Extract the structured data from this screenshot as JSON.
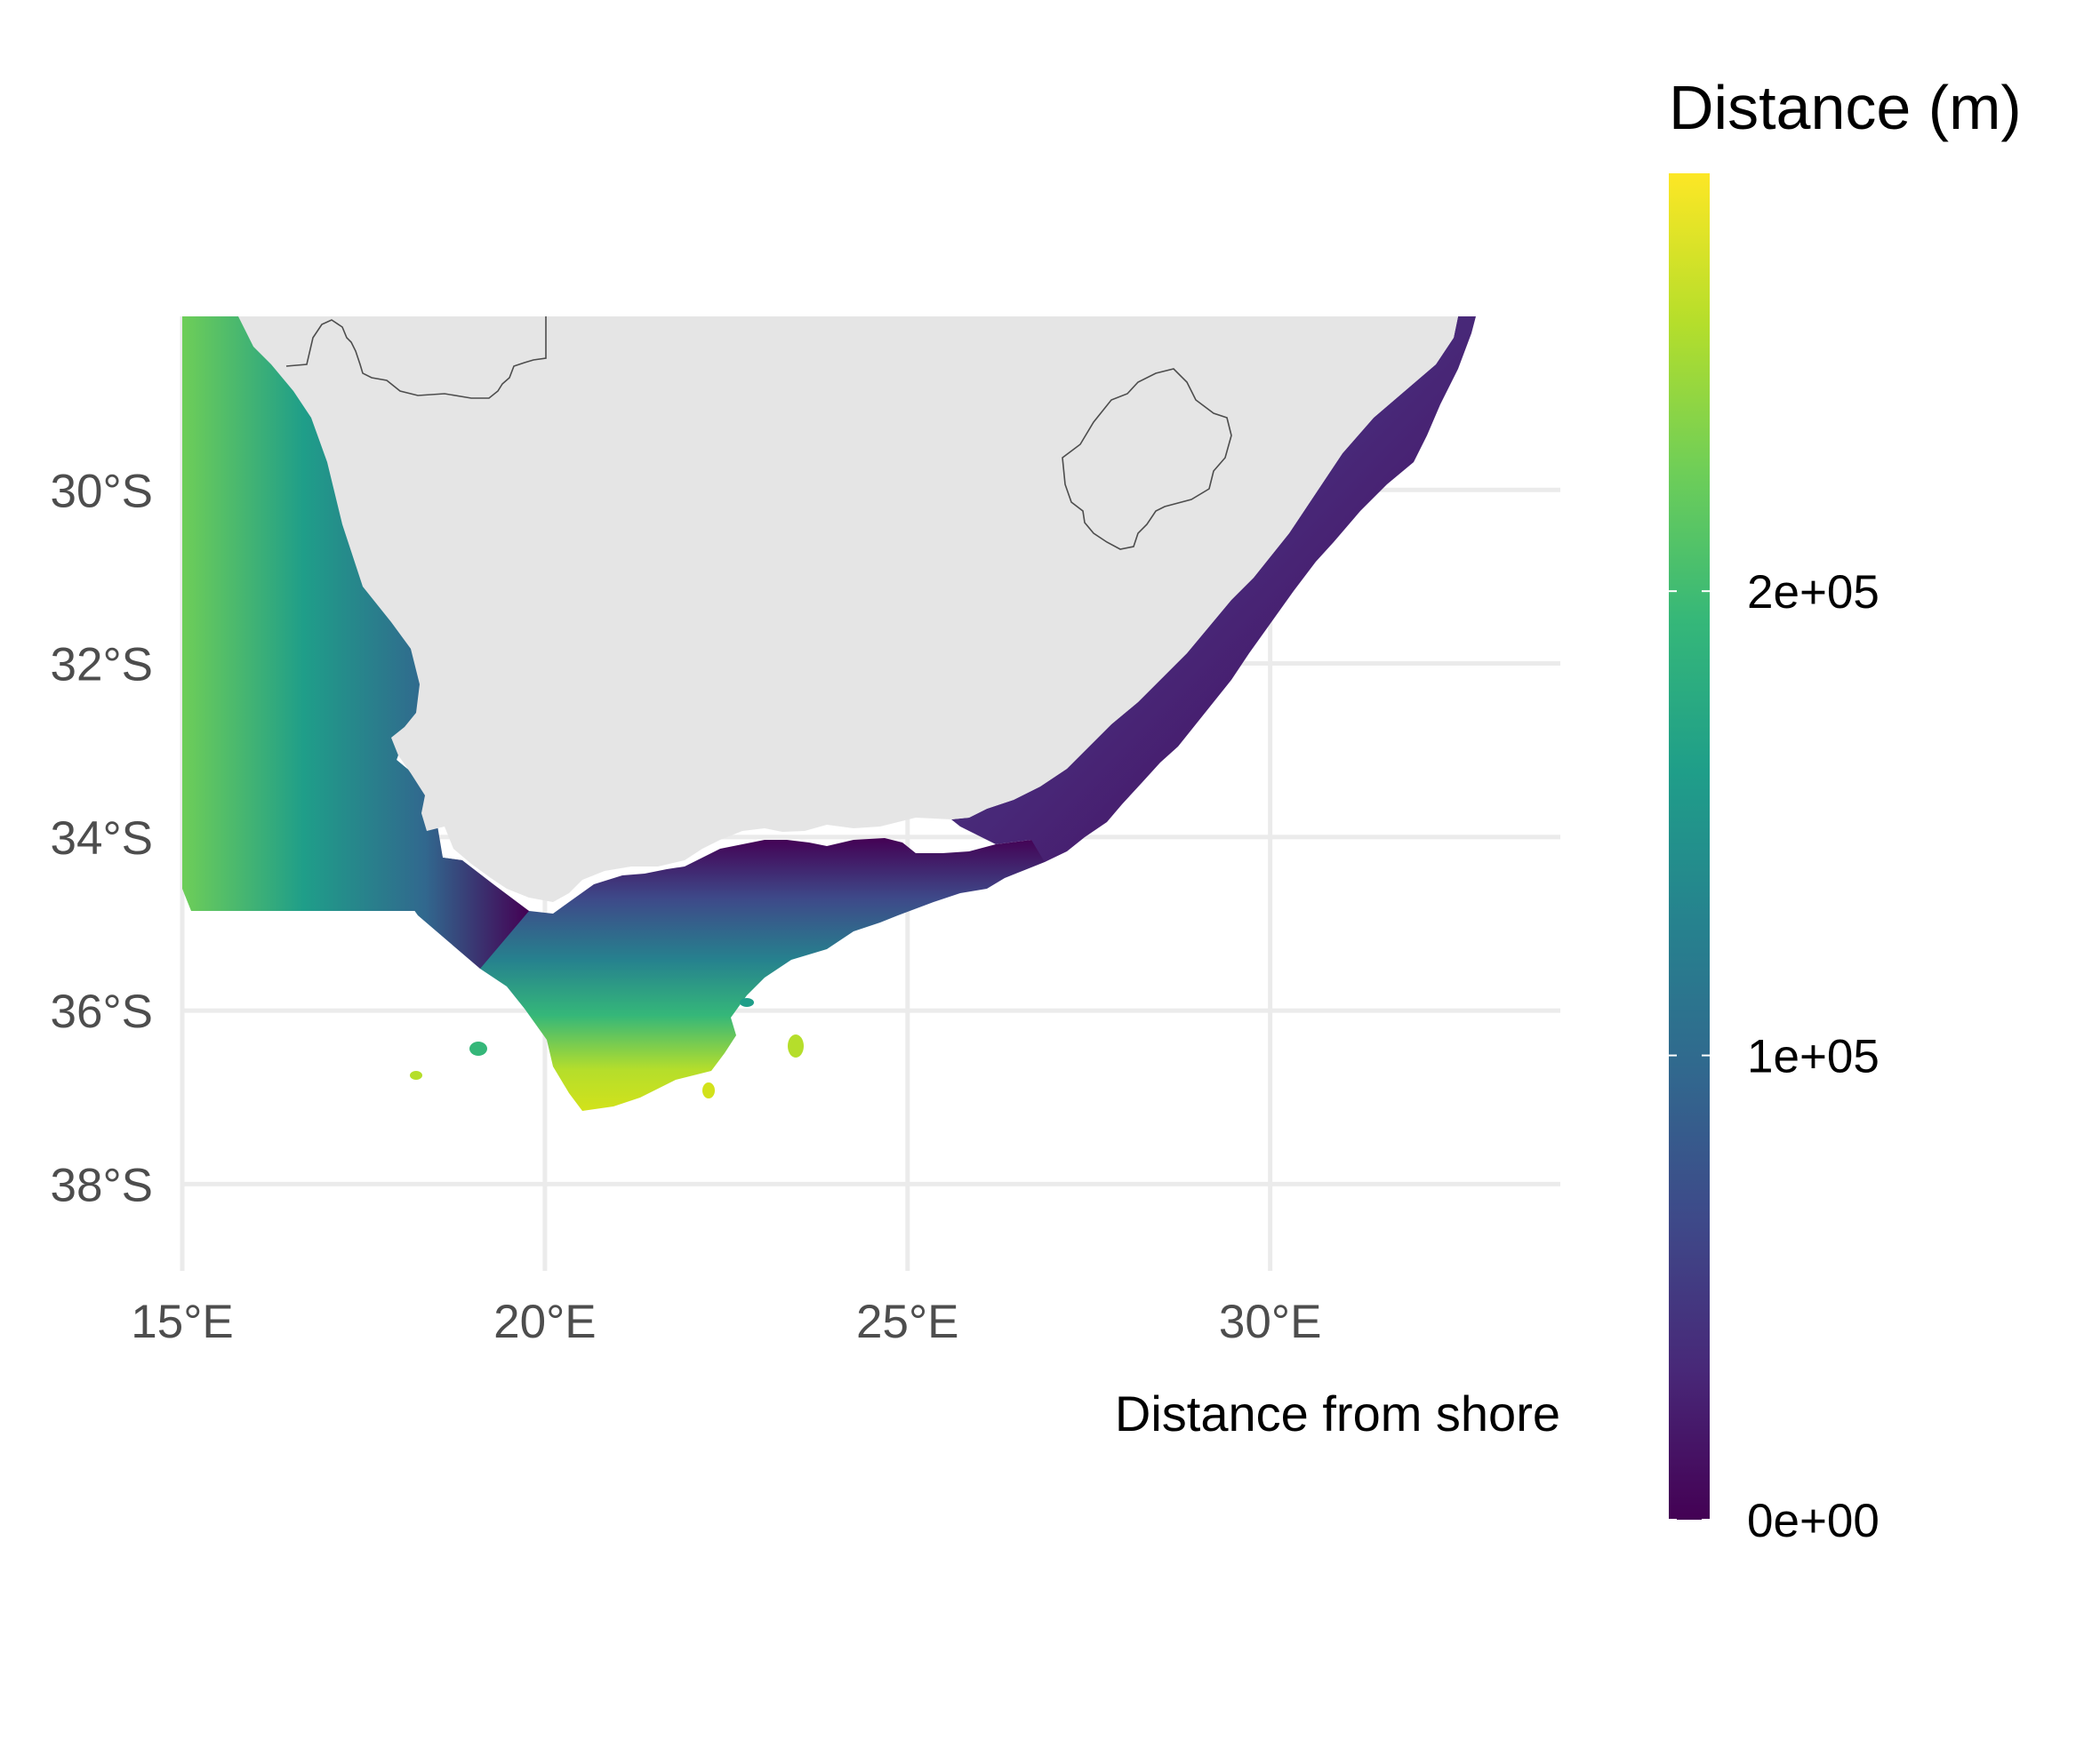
{
  "caption": "Distance from shore",
  "colors": {
    "land": "#e5e5e5",
    "grid": "#ebebeb",
    "border": "#4d4d4d",
    "viridis": [
      "#440154",
      "#482878",
      "#3e4989",
      "#31688e",
      "#26828e",
      "#1f9e89",
      "#35b779",
      "#6ece58",
      "#b5de2b",
      "#fde725"
    ]
  },
  "axes": {
    "x_ticks": [
      "15°E",
      "20°E",
      "25°E",
      "30°E"
    ],
    "y_ticks": [
      "30°S",
      "32°S",
      "34°S",
      "36°S",
      "38°S"
    ],
    "xlim": [
      15,
      34
    ],
    "ylim": [
      -39,
      -28
    ]
  },
  "legend": {
    "title": "Distance (m)",
    "labels": [
      "2e+05",
      "1e+05",
      "0e+00"
    ],
    "range": [
      0,
      290000
    ],
    "position": "right"
  },
  "chart_data": {
    "type": "heatmap",
    "title": "",
    "xlabel": "",
    "ylabel": "",
    "xlim": [
      15,
      34
    ],
    "ylim": [
      -39,
      -28
    ],
    "grid": true,
    "legend": "right",
    "series": [
      {
        "name": "Distance (m)",
        "color_scale": "viridis",
        "min": 0,
        "max": 290000,
        "unit": "m"
      }
    ]
  }
}
